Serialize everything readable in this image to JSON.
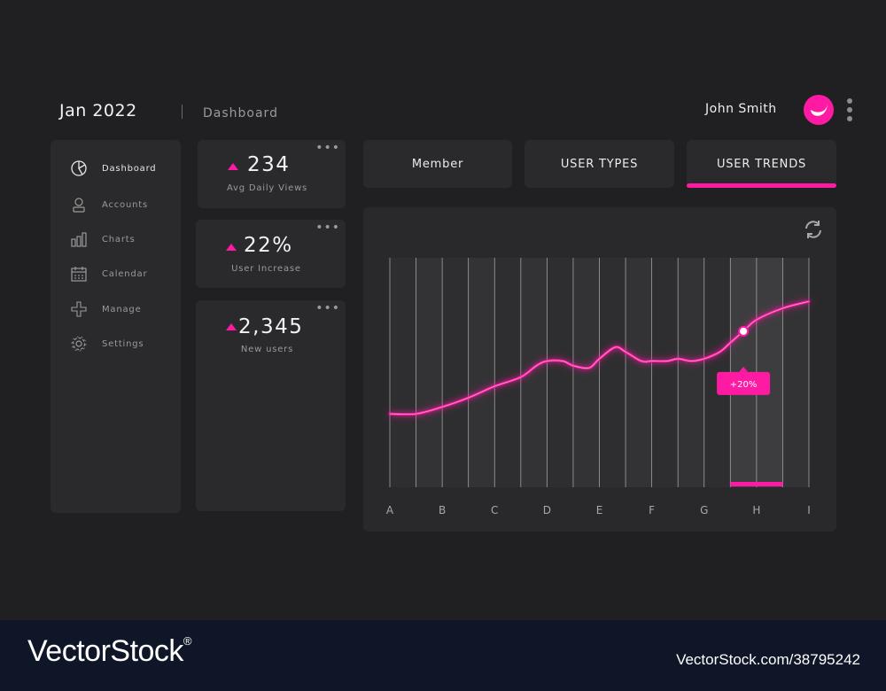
{
  "header": {
    "date": "Jan 2022",
    "breadcrumb": "Dashboard",
    "user_name": "John Smith"
  },
  "colors": {
    "accent": "#ff1aa3",
    "background": "#202022",
    "panel": "#2a2a2c",
    "footer": "#0e1628"
  },
  "sidebar": {
    "items": [
      {
        "label": "Dashboard",
        "icon": "pie-chart-icon",
        "active": true
      },
      {
        "label": "Accounts",
        "icon": "user-icon",
        "active": false
      },
      {
        "label": "Charts",
        "icon": "bar-chart-icon",
        "active": false
      },
      {
        "label": "Calendar",
        "icon": "calendar-icon",
        "active": false
      },
      {
        "label": "Manage",
        "icon": "plus-icon",
        "active": false
      },
      {
        "label": "Settings",
        "icon": "gear-icon",
        "active": false
      }
    ]
  },
  "stats": [
    {
      "value": "234",
      "caption": "Avg Daily Views",
      "trend": "up"
    },
    {
      "value": "22%",
      "caption": "User Increase",
      "trend": "up"
    },
    {
      "value": "2,345",
      "caption": "New users",
      "trend": "up"
    }
  ],
  "tabs": [
    {
      "label": "Member",
      "active": false
    },
    {
      "label": "USER TYPES",
      "active": false
    },
    {
      "label": "USER TRENDS",
      "active": true
    }
  ],
  "chart_data": {
    "type": "line",
    "categories": [
      "A",
      "B",
      "C",
      "D",
      "E",
      "F",
      "G",
      "H",
      "I"
    ],
    "x": [
      0,
      0.5,
      1,
      1.5,
      2,
      2.5,
      2.8,
      3,
      3.3,
      3.5,
      3.8,
      4,
      4.3,
      4.5,
      4.8,
      5,
      5.3,
      5.5,
      5.75,
      6,
      6.3,
      6.5,
      6.75,
      7,
      7.5,
      8
    ],
    "y": [
      32,
      32,
      35,
      39,
      44,
      48,
      53,
      55,
      55,
      53,
      52,
      56,
      61,
      59,
      55,
      55,
      55,
      56,
      55,
      56,
      59,
      63,
      68,
      73,
      78,
      81
    ],
    "highlight": {
      "category": "H",
      "label": "+20%"
    },
    "grid": "vertical",
    "xlabel": "",
    "ylabel": "",
    "title": ""
  },
  "footer": {
    "brand": "VectorStock",
    "brand_mark": "®",
    "stock_id": "VectorStock.com/38795242"
  }
}
